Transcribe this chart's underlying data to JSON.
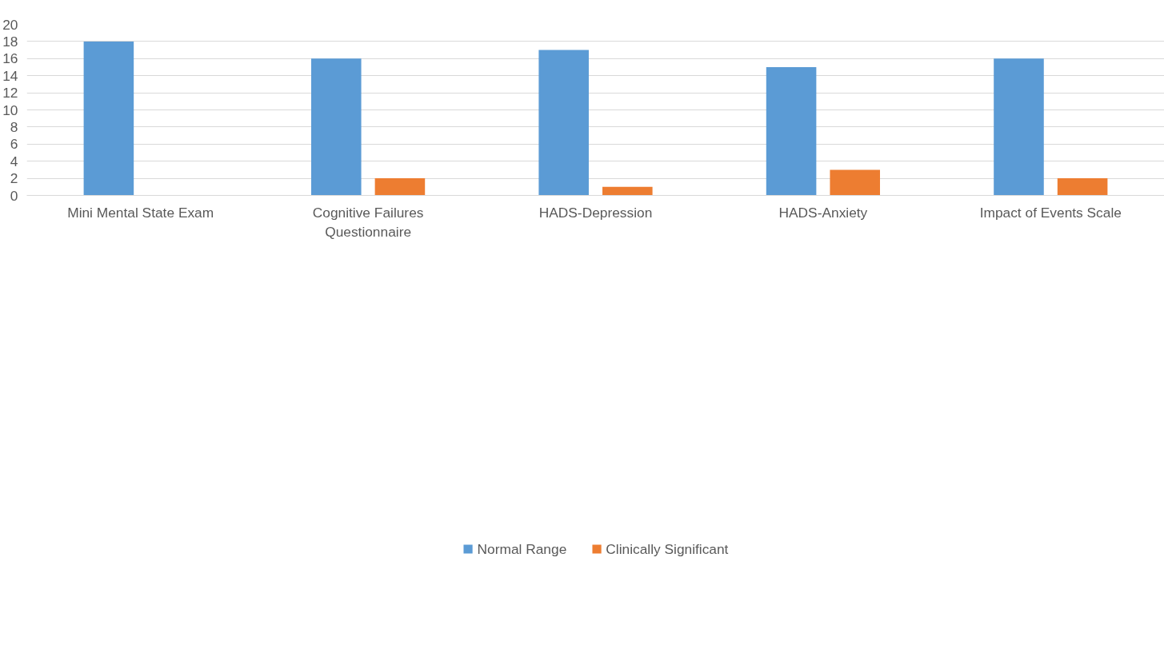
{
  "chart_data": {
    "type": "bar",
    "categories": [
      "Mini Mental State Exam",
      "Cognitive Failures Questionnaire",
      "HADS-Depression",
      "HADS-Anxiety",
      "Impact of Events Scale"
    ],
    "series": [
      {
        "name": "Normal Range",
        "color": "#5b9bd5",
        "values": [
          18,
          16,
          17,
          15,
          16
        ]
      },
      {
        "name": "Clinically Significant",
        "color": "#ed7d31",
        "values": [
          0,
          2,
          1,
          3,
          2
        ]
      }
    ],
    "ylim": [
      0,
      20
    ],
    "yticks": [
      0,
      2,
      4,
      6,
      8,
      10,
      12,
      14,
      16,
      18,
      20
    ],
    "grid": "y",
    "legend": "bottom"
  }
}
